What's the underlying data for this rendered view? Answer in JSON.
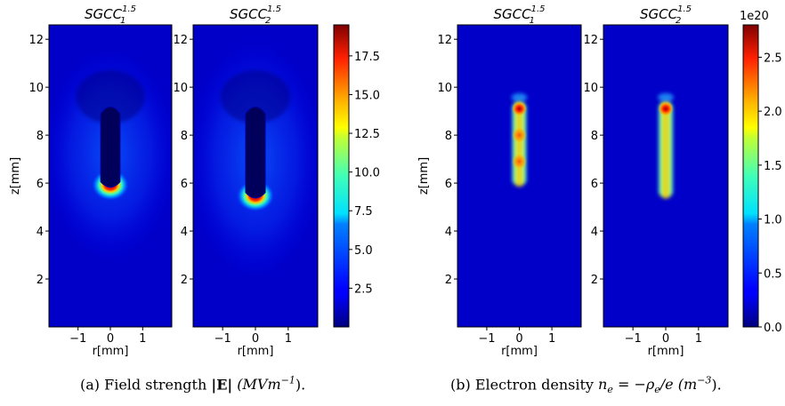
{
  "figure": {
    "captions": {
      "a": {
        "prefix": "(a) Field strength ",
        "bold": "|E|",
        "unit": " (MVm",
        "unit_exp": "−1",
        "end": ")."
      },
      "b": {
        "prefix": "(b) Electron density ",
        "formula": "n",
        "formula_sub": "e",
        "mid": " = −ρ",
        "mid_sub": "e",
        "rest": "/e (m",
        "rest_exp": "−3",
        "end": ")."
      }
    }
  },
  "chart_data": [
    {
      "type": "heatmap",
      "panel": "a",
      "subplots": [
        {
          "title_base": "SGCC",
          "title_sub": "1",
          "title_sup": "1.5",
          "stem_top_mm": 9.3,
          "stem_bottom_mm": 5.85
        },
        {
          "title_base": "SGCC",
          "title_sub": "2",
          "title_sup": "1.5",
          "stem_top_mm": 9.3,
          "stem_bottom_mm": 5.4
        }
      ],
      "xlabel": "r[mm]",
      "ylabel": "z[mm]",
      "xlim": [
        -1.9,
        1.9
      ],
      "ylim": [
        0,
        12.6
      ],
      "xticks": [
        -1,
        0,
        1
      ],
      "yticks": [
        2,
        4,
        6,
        8,
        10,
        12
      ],
      "colormap": "jet",
      "colorbar": {
        "min": 0,
        "max": 19.5,
        "ticks": [
          "2.5",
          "5.0",
          "7.5",
          "10.0",
          "12.5",
          "15.0",
          "17.5"
        ],
        "tick_values": [
          2.5,
          5.0,
          7.5,
          10.0,
          12.5,
          15.0,
          17.5
        ],
        "offset_label": ""
      }
    },
    {
      "type": "heatmap",
      "panel": "b",
      "subplots": [
        {
          "title_base": "SGCC",
          "title_sub": "1",
          "title_sup": "1.5",
          "stem_top_mm": 9.5,
          "stem_bottom_mm": 5.9,
          "hotspots_mm": [
            9.1,
            8.0,
            6.9
          ]
        },
        {
          "title_base": "SGCC",
          "title_sub": "2",
          "title_sup": "1.5",
          "stem_top_mm": 9.5,
          "stem_bottom_mm": 5.4,
          "hotspots_mm": [
            9.1
          ]
        }
      ],
      "xlabel": "r[mm]",
      "ylabel": "z[mm]",
      "xlim": [
        -1.9,
        1.9
      ],
      "ylim": [
        0,
        12.6
      ],
      "xticks": [
        -1,
        0,
        1
      ],
      "yticks": [
        2,
        4,
        6,
        8,
        10,
        12
      ],
      "colormap": "jet",
      "colorbar": {
        "min": 0,
        "max": 2.8,
        "ticks": [
          "0.0",
          "0.5",
          "1.0",
          "1.5",
          "2.0",
          "2.5"
        ],
        "tick_values": [
          0.0,
          0.5,
          1.0,
          1.5,
          2.0,
          2.5
        ],
        "offset_label": "1e20"
      }
    }
  ]
}
